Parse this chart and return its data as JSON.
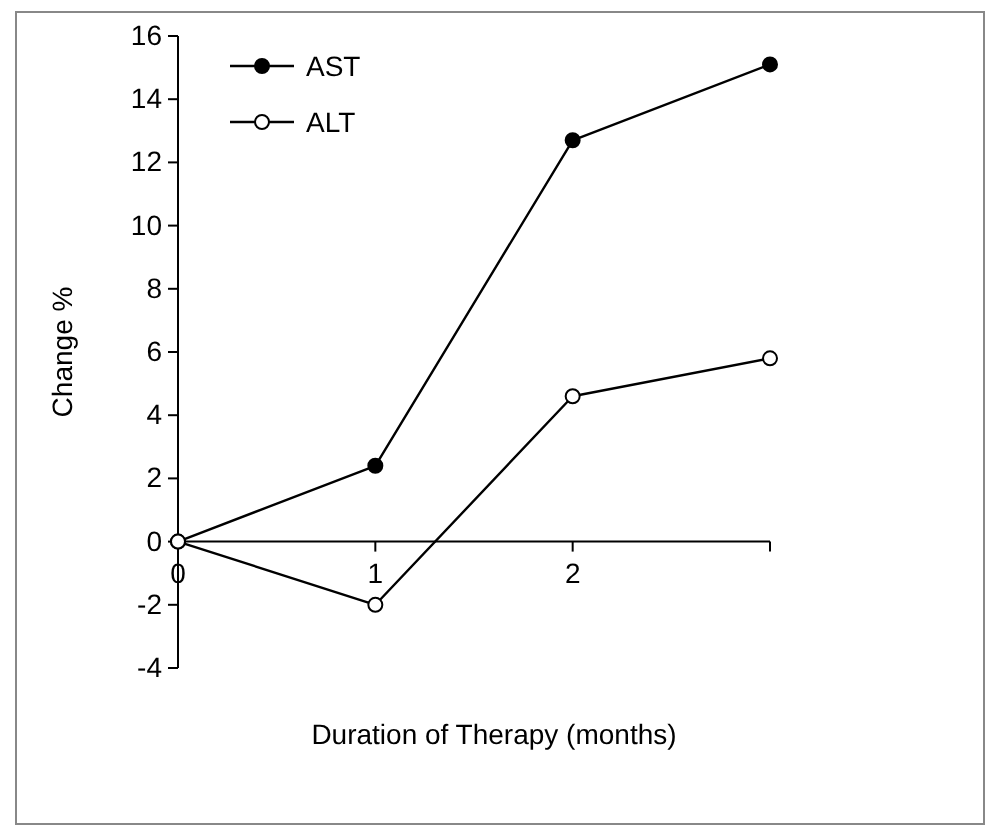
{
  "chart_data": {
    "type": "line",
    "xlabel": "Duration of Therapy (months)",
    "ylabel": "Change %",
    "x": [
      0,
      1,
      2,
      3
    ],
    "xlim": [
      0,
      3
    ],
    "xticks": [
      0,
      1,
      2,
      {
        "value": 3,
        "label": null
      }
    ],
    "ylim": [
      -4,
      16
    ],
    "yticks": [
      -4,
      -2,
      0,
      2,
      4,
      6,
      8,
      10,
      12,
      14,
      16
    ],
    "grid": false,
    "legend": "top left",
    "line_style": "solid",
    "series": [
      {
        "name": "AST",
        "color": "#000000",
        "marker": "circle",
        "values": [
          0,
          2.4,
          12.7,
          15.1
        ]
      },
      {
        "name": "ALT",
        "color": "#000000",
        "marker": "circle-open",
        "values": [
          0,
          -2.0,
          4.6,
          5.8
        ]
      }
    ]
  }
}
